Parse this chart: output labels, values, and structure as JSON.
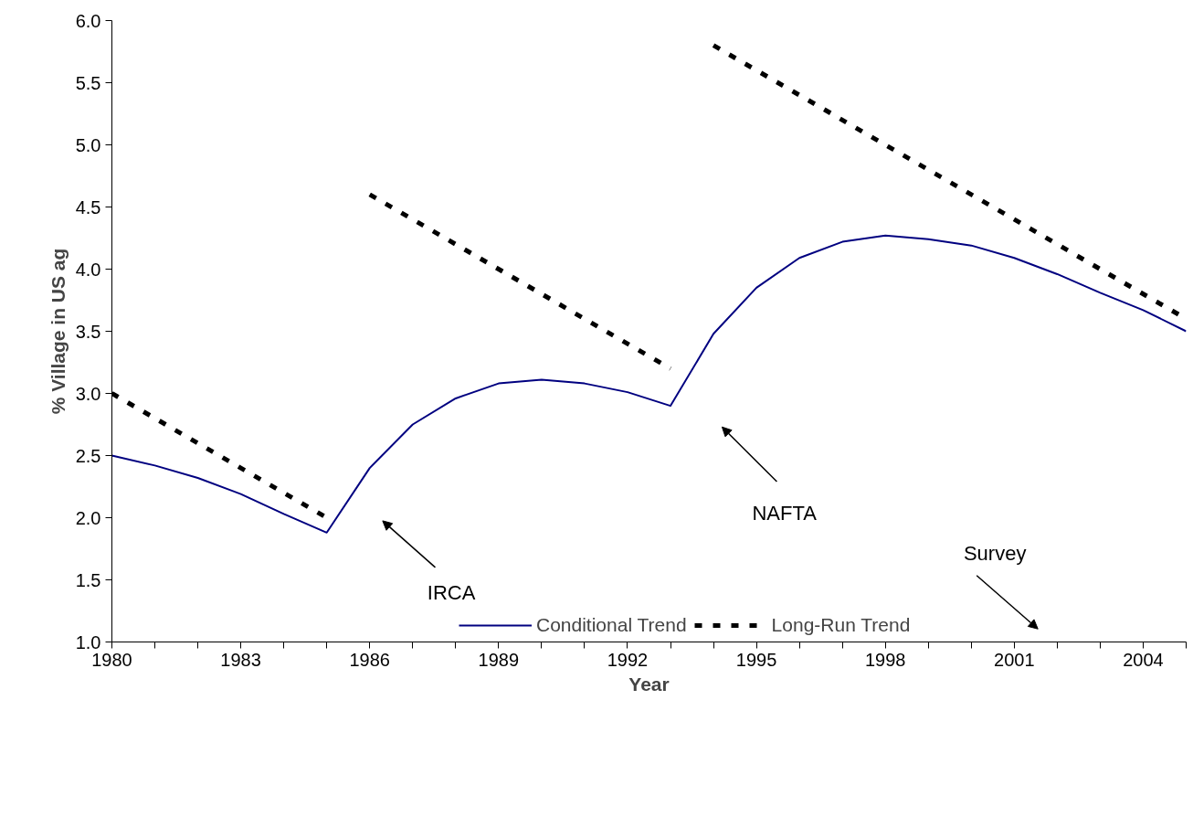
{
  "chart_data": {
    "type": "line",
    "xlabel": "Year",
    "ylabel": "% Village in US ag",
    "x": [
      1980,
      1981,
      1982,
      1983,
      1984,
      1985,
      1986,
      1987,
      1988,
      1989,
      1990,
      1991,
      1992,
      1993,
      1994,
      1995,
      1996,
      1997,
      1998,
      1999,
      2000,
      2001,
      2002,
      2003,
      2004,
      2005
    ],
    "series": [
      {
        "name": "Conditional Trend",
        "color": "#000080",
        "line_style": "solid",
        "values": [
          2.5,
          2.42,
          2.32,
          2.19,
          2.03,
          1.88,
          2.4,
          2.75,
          2.96,
          3.08,
          3.11,
          3.08,
          3.01,
          2.9,
          3.48,
          3.85,
          4.09,
          4.22,
          4.27,
          4.24,
          4.19,
          4.09,
          3.96,
          3.81,
          3.67,
          3.5
        ]
      },
      {
        "name": "Long-Run Trend",
        "color": "#000000",
        "line_style": "dashed",
        "x": [
          1980,
          1985,
          1985.5,
          1986,
          1993,
          1993.5,
          1994,
          2005
        ],
        "values": [
          3.0,
          2.0,
          null,
          4.6,
          3.2,
          null,
          5.8,
          3.6
        ]
      }
    ],
    "xlim": [
      1980,
      2005
    ],
    "xticks": [
      1980,
      {
        "value": 1981,
        "label": null
      },
      {
        "value": 1982,
        "label": null
      },
      1983,
      {
        "value": 1984,
        "label": null
      },
      {
        "value": 1985,
        "label": null
      },
      1986,
      {
        "value": 1987,
        "label": null
      },
      {
        "value": 1988,
        "label": null
      },
      1989,
      {
        "value": 1990,
        "label": null
      },
      {
        "value": 1991,
        "label": null
      },
      1992,
      {
        "value": 1993,
        "label": null
      },
      {
        "value": 1994,
        "label": null
      },
      1995,
      {
        "value": 1996,
        "label": null
      },
      {
        "value": 1997,
        "label": null
      },
      1998,
      {
        "value": 1999,
        "label": null
      },
      {
        "value": 2000,
        "label": null
      },
      2001,
      {
        "value": 2002,
        "label": null
      },
      {
        "value": 2003,
        "label": null
      },
      2004,
      {
        "value": 2005,
        "label": null
      }
    ],
    "ylim": [
      1.0,
      6.0
    ],
    "yticks": [
      {
        "value": 1.0,
        "label": "1.0"
      },
      1.5,
      {
        "value": 2.0,
        "label": "2.0"
      },
      2.5,
      {
        "value": 3.0,
        "label": "3.0"
      },
      3.5,
      {
        "value": 4.0,
        "label": "4.0"
      },
      4.5,
      {
        "value": 5.0,
        "label": "5.0"
      },
      5.5,
      {
        "value": 6.0,
        "label": "6.0"
      }
    ],
    "annotations": [
      "IRCA",
      "NAFTA",
      "Survey"
    ],
    "grid": false,
    "legend": "bottom",
    "marker": "none"
  }
}
